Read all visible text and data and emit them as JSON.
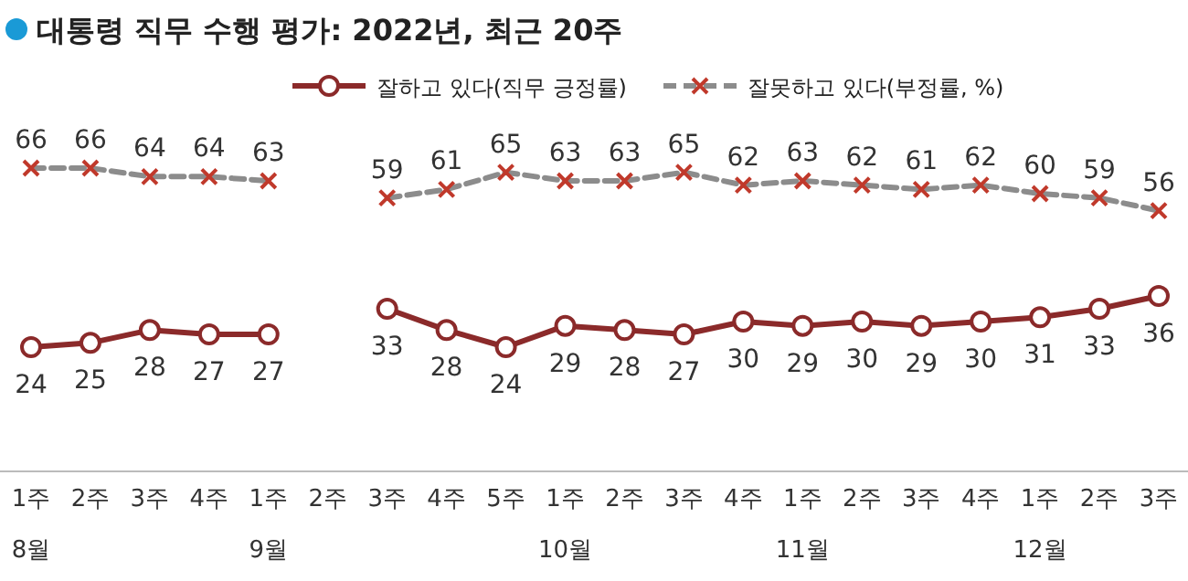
{
  "chart_data": {
    "type": "line",
    "title": "대통령 직무 수행 평가: 2022년, 최근 20주",
    "categories": [
      "1주\n8월",
      "2주",
      "3주",
      "4주",
      "1주\n9월",
      "2주",
      "3주",
      "4주",
      "5주",
      "1주\n10월",
      "2주",
      "3주",
      "4주",
      "1주\n11월",
      "2주",
      "3주",
      "4주",
      "1주\n12월",
      "2주",
      "3주"
    ],
    "series": [
      {
        "name": "잘하고 있다(직무 긍정률)",
        "color": "#8b2a2a",
        "marker": "circle",
        "line_style": "solid",
        "values": [
          24,
          25,
          28,
          27,
          27,
          null,
          33,
          28,
          24,
          29,
          28,
          27,
          30,
          29,
          30,
          29,
          30,
          31,
          33,
          36
        ]
      },
      {
        "name": "잘못하고 있다(부정률, %)",
        "color": "#8c8c8c",
        "marker": "cross",
        "line_style": "dashed",
        "values": [
          66,
          66,
          64,
          64,
          63,
          null,
          59,
          61,
          65,
          63,
          63,
          65,
          62,
          63,
          62,
          61,
          62,
          60,
          59,
          56
        ]
      }
    ],
    "data_labels": true,
    "legend": "top",
    "grid": false
  }
}
